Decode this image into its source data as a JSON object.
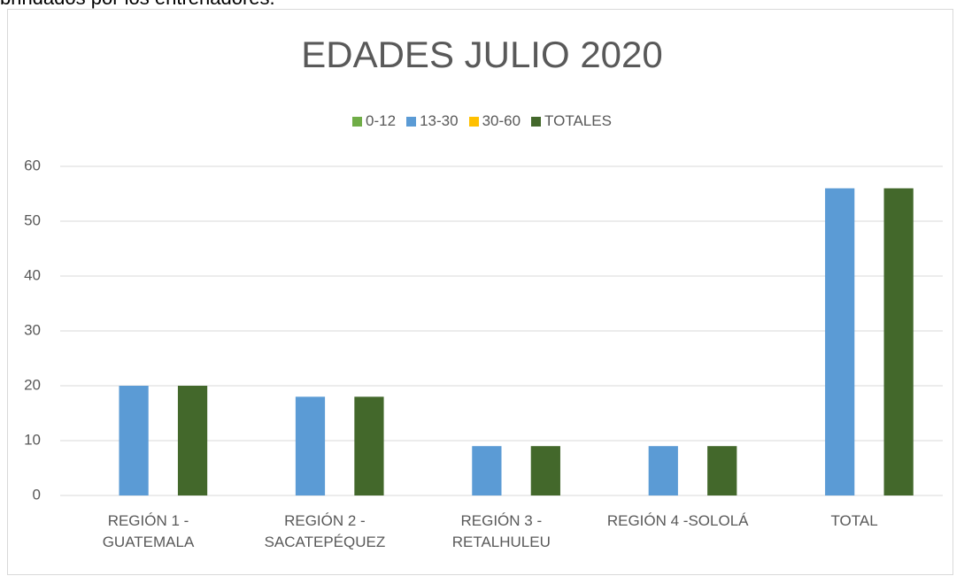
{
  "page_text": "brindados por los entrenadores.",
  "chart_data": {
    "type": "bar",
    "title": "EDADES JULIO 2020",
    "categories": [
      "REGIÓN 1 -\nGUATEMALA",
      "REGIÓN 2 -\nSACATEPÉQUEZ",
      "REGIÓN 3 -\nRETALHULEU",
      "REGIÓN 4 -SOLOLÁ",
      "TOTAL"
    ],
    "series": [
      {
        "name": "0-12",
        "color": "#70ad47",
        "values": [
          0,
          0,
          0,
          0,
          0
        ]
      },
      {
        "name": "13-30",
        "color": "#5b9bd5",
        "values": [
          20,
          18,
          9,
          9,
          56
        ]
      },
      {
        "name": "30-60",
        "color": "#ffc000",
        "values": [
          0,
          0,
          0,
          0,
          0
        ]
      },
      {
        "name": "TOTALES",
        "color": "#43682b",
        "values": [
          20,
          18,
          9,
          9,
          56
        ]
      }
    ],
    "ylim": [
      0,
      60
    ],
    "yticks": [
      0,
      10,
      20,
      30,
      40,
      50,
      60
    ],
    "grid": true,
    "legend": "top"
  }
}
